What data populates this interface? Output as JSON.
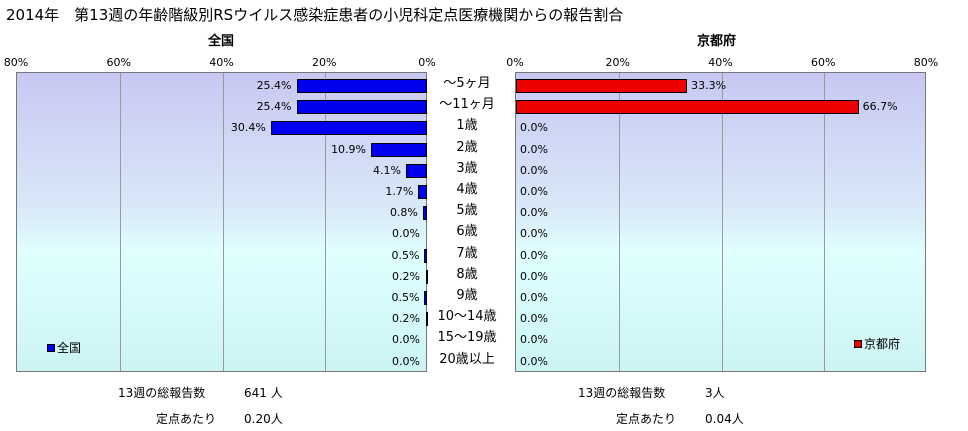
{
  "title": "2014年　第13週の年齢階級別RSウイルス感染症患者の小児科定点医療機関からの報告割合",
  "chart_data": {
    "type": "bar",
    "categories": [
      "～5ヶ月",
      "～11ヶ月",
      "1歳",
      "2歳",
      "3歳",
      "4歳",
      "5歳",
      "6歳",
      "7歳",
      "8歳",
      "9歳",
      "10～14歳",
      "15～19歳",
      "20歳以上"
    ],
    "xlim": [
      0,
      80
    ],
    "x_ticks": [
      "0%",
      "20%",
      "40%",
      "60%",
      "80%"
    ],
    "grid": true,
    "colors": {
      "left": "#0000ee",
      "right": "#ee0000"
    },
    "left_panel": {
      "title": "全国",
      "legend": "全国",
      "legend_position": "bottom-left",
      "orientation": "reversed",
      "values": [
        25.4,
        25.4,
        30.4,
        10.9,
        4.1,
        1.7,
        0.8,
        0.0,
        0.5,
        0.2,
        0.5,
        0.2,
        0.0,
        0.0
      ],
      "labels": [
        "25.4%",
        "25.4%",
        "30.4%",
        "10.9%",
        "4.1%",
        "1.7%",
        "0.8%",
        "0.0%",
        "0.5%",
        "0.2%",
        "0.5%",
        "0.2%",
        "0.0%",
        "0.0%"
      ]
    },
    "right_panel": {
      "title": "京都府",
      "legend": "京都府",
      "legend_position": "bottom-right",
      "values": [
        33.3,
        66.7,
        0.0,
        0.0,
        0.0,
        0.0,
        0.0,
        0.0,
        0.0,
        0.0,
        0.0,
        0.0,
        0.0,
        0.0
      ],
      "labels": [
        "33.3%",
        "66.7%",
        "0.0%",
        "0.0%",
        "0.0%",
        "0.0%",
        "0.0%",
        "0.0%",
        "0.0%",
        "0.0%",
        "0.0%",
        "0.0%",
        "0.0%",
        "0.0%"
      ]
    }
  },
  "stats": {
    "left": {
      "total_label": "13週の総報告数",
      "total_value": "641 人",
      "per_label": "定点あたり",
      "per_value": "0.20人"
    },
    "right": {
      "total_label": "13週の総報告数",
      "total_value": "3人",
      "per_label": "定点あたり",
      "per_value": "0.04人"
    }
  }
}
